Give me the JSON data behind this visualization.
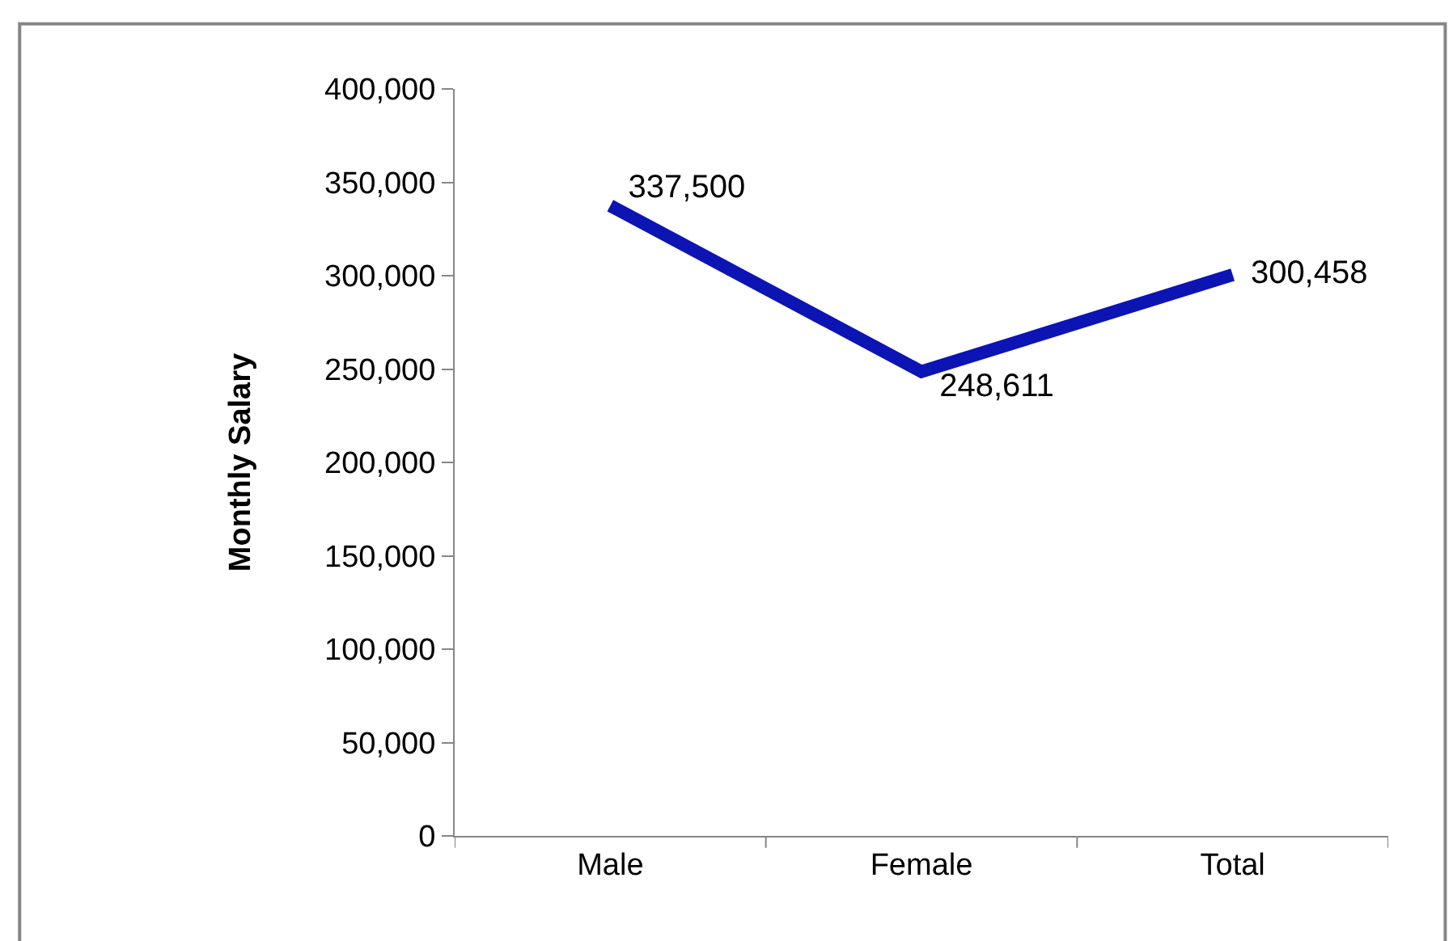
{
  "chart_data": {
    "type": "line",
    "ylabel": "Monthly Salary",
    "categories": [
      "Male",
      "Female",
      "Total"
    ],
    "series": [
      {
        "color": "#0d14b4",
        "values": [
          337500,
          248611,
          300458
        ],
        "value_labels": [
          "337,500",
          "248,611",
          "300,458"
        ]
      }
    ],
    "ylim": [
      0,
      400000
    ],
    "yticks": [
      0,
      {
        "value": 50000,
        "label": "50,000"
      },
      {
        "value": 100000,
        "label": "100,000"
      },
      {
        "value": 150000,
        "label": "150,000"
      },
      {
        "value": 200000,
        "label": "200,000"
      },
      {
        "value": 250000,
        "label": "250,000"
      },
      {
        "value": 300000,
        "label": "300,000"
      },
      {
        "value": 350000,
        "label": "350,000"
      },
      {
        "value": 400000,
        "label": "400,000"
      }
    ],
    "marker": "none",
    "line_style": "solid"
  }
}
